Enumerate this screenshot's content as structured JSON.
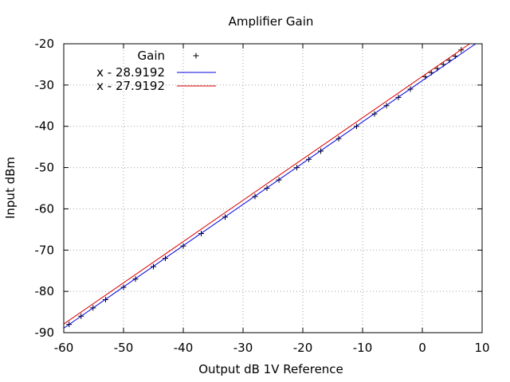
{
  "chart_data": {
    "type": "scatter",
    "title": "Amplifier Gain",
    "xlabel": "Output dB 1V Reference",
    "ylabel": "Input dBm",
    "xlim": [
      -60,
      10
    ],
    "ylim": [
      -90,
      -20
    ],
    "xticks": [
      "-60",
      "-50",
      "-40",
      "-30",
      "-20",
      "-10",
      "0",
      "10"
    ],
    "yticks": [
      "-90",
      "-80",
      "-70",
      "-60",
      "-50",
      "-40",
      "-30",
      "-20"
    ],
    "grid": true,
    "legend_position": "top-left",
    "series": [
      {
        "name": "Gain",
        "kind": "points",
        "marker": "+",
        "color": "#000000",
        "x": [
          -59.1,
          -57.1,
          -55.1,
          -53.0,
          -50.0,
          -48.0,
          -45.0,
          -43.0,
          -40.0,
          -37.0,
          -33.0,
          -28.0,
          -26.0,
          -24.0,
          -21.0,
          -19.0,
          -17.0,
          -14.0,
          -11.0,
          -8.0,
          -6.0,
          -4.0,
          -2.0,
          0.5,
          1.5,
          2.5,
          3.5,
          4.5,
          5.5,
          6.5
        ],
        "y": [
          -88.0,
          -86.0,
          -84.0,
          -82.0,
          -79.0,
          -77.0,
          -74.0,
          -72.0,
          -69.0,
          -66.0,
          -62.0,
          -57.0,
          -55.0,
          -53.0,
          -50.0,
          -48.0,
          -46.0,
          -43.0,
          -40.0,
          -37.0,
          -35.0,
          -33.0,
          -31.0,
          -28.0,
          -27.0,
          -26.0,
          -25.0,
          -24.0,
          -23.0,
          -21.5
        ]
      },
      {
        "name": "x - 28.9192",
        "kind": "line",
        "color": "#0000dd",
        "slope": 1,
        "intercept": -28.9192
      },
      {
        "name": "x - 27.9192",
        "kind": "line",
        "color": "#dd0000",
        "slope": 1,
        "intercept": -27.9192
      }
    ]
  }
}
